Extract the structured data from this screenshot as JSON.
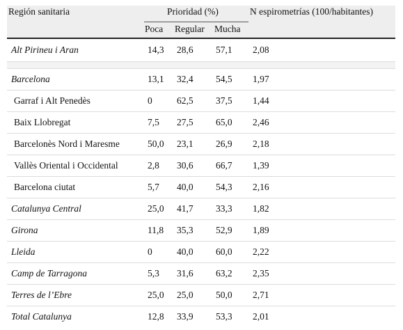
{
  "table": {
    "header": {
      "region": "Región sanitaria",
      "priority": "Prioridad (%)",
      "spirometry": "N espirometrías (100/habitantes)",
      "subheaders": [
        "Poca",
        "Regular",
        "Mucha"
      ]
    },
    "rows": [
      [
        "Alt Pirineu i Aran",
        "14,3",
        "28,6",
        "57,1",
        "2,08"
      ],
      [
        "Barcelona",
        "13,1",
        "32,4",
        "54,5",
        "1,97"
      ],
      [
        "Garraf i Alt Penedès",
        "0",
        "62,5",
        "37,5",
        "1,44"
      ],
      [
        "Baix Llobregat",
        "7,5",
        "27,5",
        "65,0",
        "2,46"
      ],
      [
        "Barcelonès Nord i Maresme",
        "50,0",
        "23,1",
        "26,9",
        "2,18"
      ],
      [
        "Vallès Oriental i Occidental",
        "2,8",
        "30,6",
        "66,7",
        "1,39"
      ],
      [
        "Barcelona ciutat",
        "5,7",
        "40,0",
        "54,3",
        "2,16"
      ],
      [
        "Catalunya Central",
        "25,0",
        "41,7",
        "33,3",
        "1,82"
      ],
      [
        "Girona",
        "11,8",
        "35,3",
        "52,9",
        "1,89"
      ],
      [
        "Lleida",
        "0",
        "40,0",
        "60,0",
        "2,22"
      ],
      [
        "Camp de Tarragona",
        "5,3",
        "31,6",
        "63,2",
        "2,35"
      ],
      [
        "Terres de l’Ebre",
        "25,0",
        "25,0",
        "50,0",
        "2,71"
      ],
      [
        "Total Catalunya",
        "12,8",
        "33,9",
        "53,3",
        "2,01"
      ]
    ]
  }
}
